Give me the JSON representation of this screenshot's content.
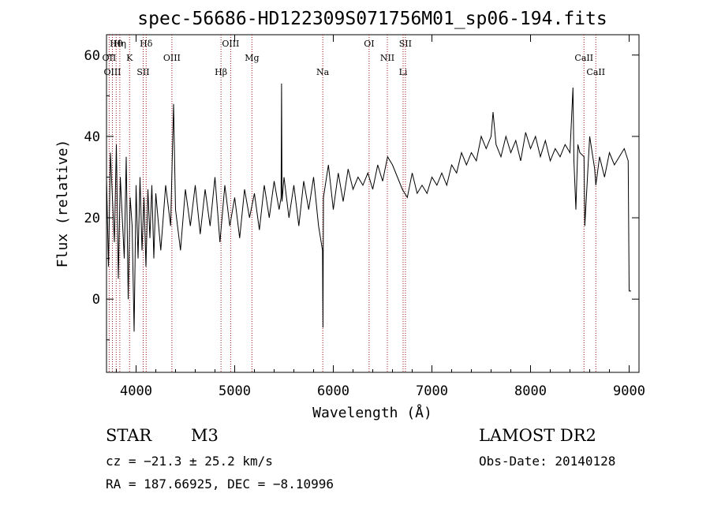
{
  "chart_data": {
    "type": "line",
    "title": "spec-56686-HD122309S071756M01_sp06-194.fits",
    "xlabel": "Wavelength (Å)",
    "ylabel": "Flux (relative)",
    "xlim": [
      3700,
      9100
    ],
    "ylim": [
      -18,
      65
    ],
    "x_ticks": [
      4000,
      5000,
      6000,
      7000,
      8000,
      9000
    ],
    "y_ticks": [
      0,
      20,
      40,
      60
    ],
    "grid": false,
    "line_color": "#000000",
    "marker_line_color": "#a01818",
    "series": [
      {
        "x": [
          3700,
          3720,
          3740,
          3760,
          3780,
          3800,
          3820,
          3840,
          3860,
          3880,
          3900,
          3920,
          3940,
          3960,
          3980,
          4000,
          4020,
          4040,
          4060,
          4080,
          4100,
          4120,
          4140,
          4160,
          4180,
          4200,
          4250,
          4300,
          4350,
          4380,
          4400,
          4450,
          4500,
          4550,
          4600,
          4650,
          4700,
          4750,
          4800,
          4850,
          4900,
          4950,
          5000,
          5050,
          5100,
          5150,
          5200,
          5250,
          5300,
          5350,
          5400,
          5450,
          5470,
          5475,
          5480,
          5500,
          5550,
          5600,
          5650,
          5700,
          5750,
          5800,
          5850,
          5890,
          5895,
          5900,
          5950,
          6000,
          6050,
          6100,
          6150,
          6200,
          6250,
          6300,
          6350,
          6400,
          6450,
          6500,
          6550,
          6600,
          6650,
          6700,
          6750,
          6800,
          6850,
          6900,
          6950,
          7000,
          7050,
          7100,
          7150,
          7200,
          7250,
          7300,
          7350,
          7400,
          7450,
          7500,
          7550,
          7600,
          7620,
          7650,
          7700,
          7750,
          7800,
          7850,
          7900,
          7950,
          8000,
          8050,
          8100,
          8150,
          8200,
          8250,
          8300,
          8350,
          8400,
          8430,
          8440,
          8460,
          8480,
          8500,
          8542,
          8550,
          8600,
          8650,
          8662,
          8700,
          8750,
          8800,
          8850,
          8900,
          8950,
          8990,
          9000,
          9020
        ],
        "y": [
          30,
          8,
          36,
          25,
          14,
          38,
          5,
          30,
          20,
          10,
          35,
          0,
          25,
          18,
          -8,
          28,
          10,
          30,
          12,
          25,
          8,
          27,
          15,
          28,
          10,
          26,
          12,
          28,
          18,
          48,
          22,
          12,
          27,
          18,
          28,
          16,
          27,
          18,
          30,
          14,
          28,
          18,
          25,
          15,
          27,
          20,
          26,
          17,
          28,
          20,
          29,
          22,
          25,
          53,
          24,
          30,
          20,
          28,
          18,
          29,
          22,
          30,
          18,
          12,
          -7,
          25,
          33,
          22,
          31,
          24,
          32,
          27,
          30,
          28,
          31,
          27,
          33,
          29,
          35,
          33,
          30,
          27,
          25,
          31,
          26,
          28,
          26,
          30,
          28,
          31,
          28,
          33,
          31,
          36,
          33,
          36,
          34,
          40,
          37,
          40,
          46,
          38,
          35,
          40,
          36,
          39,
          34,
          41,
          37,
          40,
          35,
          39,
          34,
          37,
          35,
          38,
          36,
          52,
          34,
          22,
          38,
          36,
          35,
          18,
          40,
          32,
          28,
          35,
          30,
          36,
          33,
          35,
          37,
          34,
          2,
          2
        ]
      }
    ],
    "line_markers": [
      {
        "label": "Hθ",
        "x": 3798
      },
      {
        "label": "OII",
        "x": 3727
      },
      {
        "label": "OIII",
        "x": 3760
      },
      {
        "label": "Hη",
        "x": 3835
      },
      {
        "label": "K",
        "x": 3934
      },
      {
        "label": "SII",
        "x": 4072
      },
      {
        "label": "Hδ",
        "x": 4102
      },
      {
        "label": "OIII",
        "x": 4363
      },
      {
        "label": "Hβ",
        "x": 4861
      },
      {
        "label": "OIII",
        "x": 4959
      },
      {
        "label": "Mg",
        "x": 5175
      },
      {
        "label": "Na",
        "x": 5893
      },
      {
        "label": "OI",
        "x": 6363
      },
      {
        "label": "NII",
        "x": 6548
      },
      {
        "label": "Li",
        "x": 6708
      },
      {
        "label": "SII",
        "x": 6731
      },
      {
        "label": "CaII",
        "x": 8542
      },
      {
        "label": "CaII",
        "x": 8662
      }
    ]
  },
  "info": {
    "object_type": "STAR",
    "subclass": "M3",
    "survey": "LAMOST DR2",
    "cz": "cz = −21.3 ± 25.2 km/s",
    "obs_date": "Obs-Date: 20140128",
    "coords": "RA = 187.66925, DEC =  −8.10996"
  }
}
